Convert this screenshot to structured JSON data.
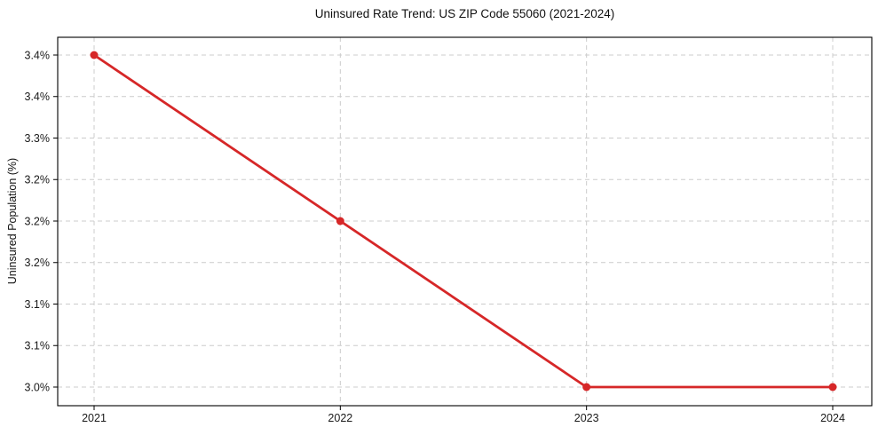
{
  "figure": {
    "background": "#ffffff"
  },
  "chart_data": {
    "type": "line",
    "title": "Uninsured Rate Trend: US ZIP Code 55060 (2021-2024)",
    "xlabel": "",
    "ylabel": "Uninsured Population (%)",
    "categories": [
      "2021",
      "2022",
      "2023",
      "2024"
    ],
    "series": [
      {
        "name": "Uninsured Population (%)",
        "values": [
          3.4,
          3.2,
          3.0,
          3.0
        ],
        "color": "#d62728",
        "marker": "circle",
        "marker_radius": 4.5
      }
    ],
    "ylim": [
      3.0,
      3.4
    ],
    "yticks": {
      "values": [
        3.0,
        3.05,
        3.1,
        3.15,
        3.2,
        3.25,
        3.3,
        3.35,
        3.4
      ],
      "labels": [
        "3.0%",
        "3.1%",
        "3.1%",
        "3.2%",
        "3.2%",
        "3.2%",
        "3.3%",
        "3.4%",
        "3.4%"
      ]
    },
    "grid": {
      "style": "dashed",
      "color": "#cccccc"
    },
    "legend_position": "none"
  }
}
